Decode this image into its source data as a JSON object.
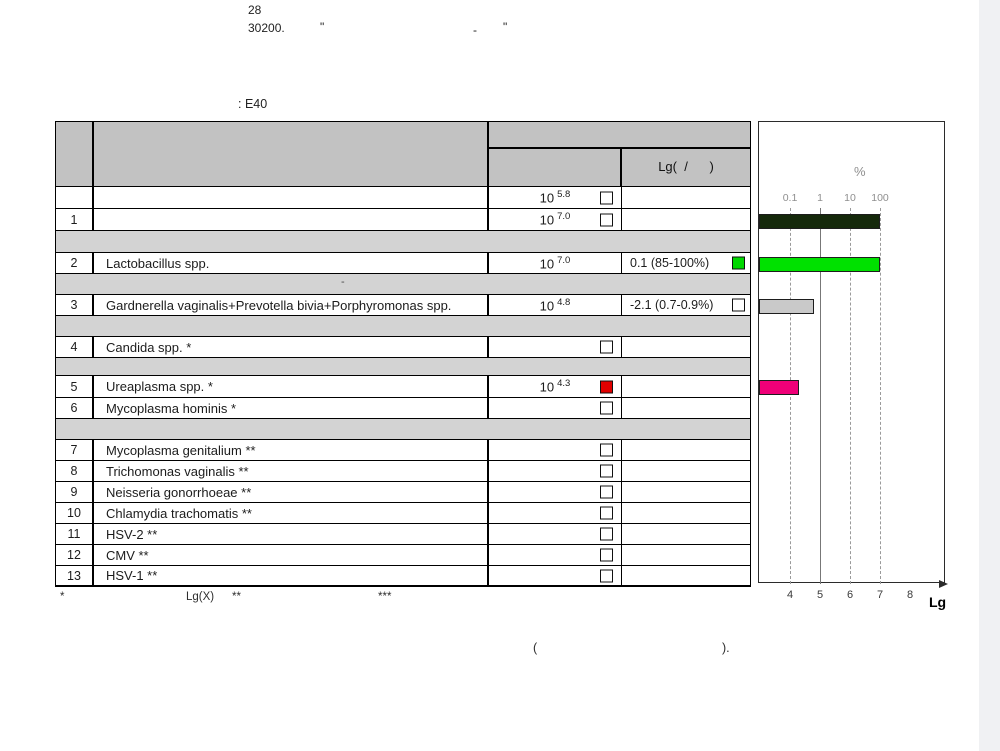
{
  "page": {
    "top_block": {
      "line1": "28",
      "line2": "30200.",
      "quote_a": "\"",
      "dash": "-",
      "quote_b": "\""
    },
    "section_label": ": E40"
  },
  "table": {
    "header": {
      "lg_column_label": "Lg(  /      )"
    },
    "separator_dash": "-",
    "rows": [
      {
        "num": "",
        "name": "",
        "value_base": "10",
        "value_exp": "5.8",
        "checkbox": "empty"
      },
      {
        "num": "1",
        "name": "",
        "value_base": "10",
        "value_exp": "7.0",
        "checkbox": "empty"
      },
      {
        "num": "2",
        "name": "Lactobacillus spp.",
        "value_base": "10",
        "value_exp": "7.0",
        "lg_ratio": "0.1 (85-100%)",
        "lg_checkbox": "green"
      },
      {
        "num": "3",
        "name": "Gardnerella vaginalis+Prevotella bivia+Porphyromonas spp.",
        "value_base": "10",
        "value_exp": "4.8",
        "lg_ratio": "-2.1 (0.7-0.9%)",
        "lg_checkbox": "empty"
      },
      {
        "num": "4",
        "name": "Candida spp. *",
        "checkbox": "empty"
      },
      {
        "num": "5",
        "name": "Ureaplasma spp. *",
        "value_base": "10",
        "value_exp": "4.3",
        "checkbox": "red"
      },
      {
        "num": "6",
        "name": "Mycoplasma hominis *",
        "checkbox": "empty"
      },
      {
        "num": "7",
        "name": "Mycoplasma genitalium **",
        "checkbox": "empty"
      },
      {
        "num": "8",
        "name": "Trichomonas vaginalis **",
        "checkbox": "empty"
      },
      {
        "num": "9",
        "name": "Neisseria gonorrhoeae **",
        "checkbox": "empty"
      },
      {
        "num": "10",
        "name": "Chlamydia trachomatis **",
        "checkbox": "empty"
      },
      {
        "num": "11",
        "name": "HSV-2 **",
        "checkbox": "empty"
      },
      {
        "num": "12",
        "name": "CMV **",
        "checkbox": "empty"
      },
      {
        "num": "13",
        "name": "HSV-1 **",
        "checkbox": "empty"
      }
    ]
  },
  "footnotes": {
    "star": "*",
    "lg_x": "Lg(X)",
    "double_star": "**",
    "triple_star": "***"
  },
  "closing_note": {
    "open_paren": "(",
    "close_paren": ")."
  },
  "colors": {
    "header_gray": "#c2c2c2",
    "separator_gray": "#d3d3d3",
    "checkbox": {
      "empty": "#ffffff",
      "green": "#00d800",
      "red": "#e10000"
    },
    "axis_text_gray": "#8f8f8f"
  },
  "chart_data": {
    "type": "bar",
    "orientation": "horizontal",
    "top_axis": {
      "label": "%",
      "ticks": [
        {
          "label": "0.1",
          "lg": 4
        },
        {
          "label": "1",
          "lg": 5
        },
        {
          "label": "10",
          "lg": 6
        },
        {
          "label": "100",
          "lg": 7
        }
      ]
    },
    "bottom_axis": {
      "label": "Lg",
      "ticks": [
        {
          "label": "4",
          "lg": 4
        },
        {
          "label": "5",
          "lg": 5
        },
        {
          "label": "6",
          "lg": 6
        },
        {
          "label": "7",
          "lg": 7
        },
        {
          "label": "8",
          "lg": 8
        }
      ]
    },
    "gridlines": [
      {
        "lg": 4,
        "style": "dashed"
      },
      {
        "lg": 5,
        "style": "solid"
      },
      {
        "lg": 6,
        "style": "dashed"
      },
      {
        "lg": 7,
        "style": "dashed"
      }
    ],
    "bars": [
      {
        "row_ref": 1,
        "label": "",
        "lg": 7.0,
        "color": "#15290b"
      },
      {
        "row_ref": 2,
        "label": "Lactobacillus spp.",
        "lg": 7.0,
        "color": "#00e100"
      },
      {
        "row_ref": 3,
        "label": "Gardnerella vaginalis+Prevotella bivia+Porphyromonas spp.",
        "lg": 4.8,
        "color": "#c9c9c9"
      },
      {
        "row_ref": 5,
        "label": "Ureaplasma spp.",
        "lg": 4.3,
        "color": "#ef0078"
      }
    ]
  }
}
